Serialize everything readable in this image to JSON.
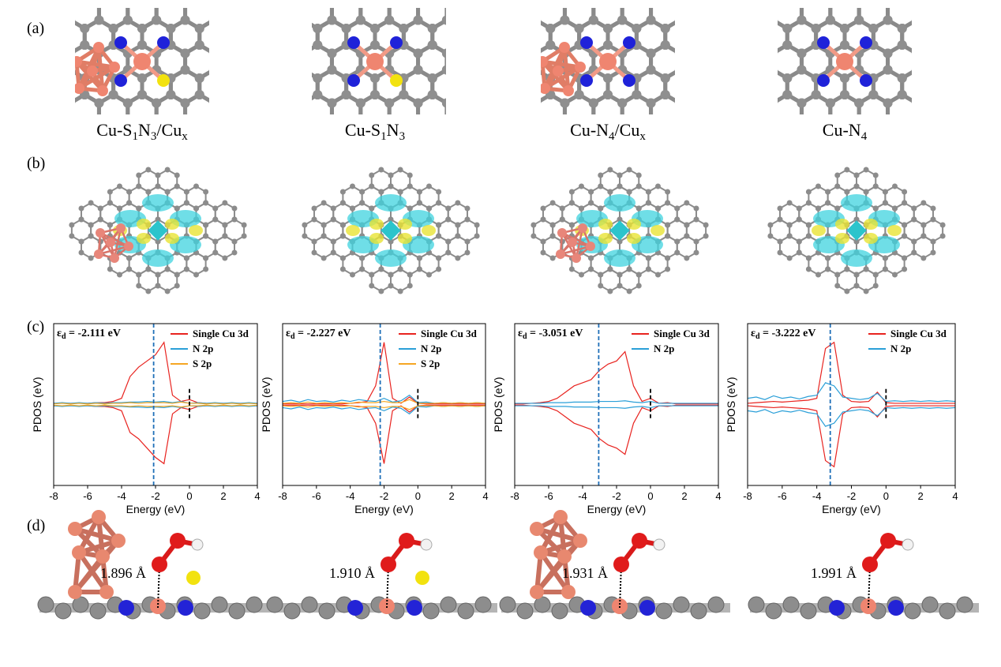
{
  "panels": [
    "(a)",
    "(b)",
    "(c)",
    "(d)"
  ],
  "structures": [
    {
      "label": [
        "Cu-S",
        "1",
        "N",
        "3",
        "/Cu",
        "x"
      ]
    },
    {
      "label": [
        "Cu-S",
        "1",
        "N",
        "3"
      ]
    },
    {
      "label": [
        "Cu-N",
        "4",
        "/Cu",
        "x"
      ]
    },
    {
      "label": [
        "Cu-N",
        "4"
      ]
    }
  ],
  "bond_lengths": [
    "1.896 Å",
    "1.910 Å",
    "1.931 Å",
    "1.991 Å"
  ],
  "chart_data": [
    {
      "type": "line",
      "xlabel": "Energy (eV)",
      "ylabel": "PDOS (eV)",
      "xlim": [
        -8,
        4
      ],
      "xticks": [
        -8,
        -6,
        -4,
        -2,
        0,
        2,
        4
      ],
      "ylim": [
        -1.3,
        1.3
      ],
      "annotation": {
        "symbol": "ε",
        "subscript": "d",
        "text": " = -2.111 eV",
        "value": -2.111
      },
      "fermi_level": 0,
      "x": [
        -8,
        -7.5,
        -7,
        -6.5,
        -6,
        -5.5,
        -5,
        -4.5,
        -4,
        -3.5,
        -3,
        -2.5,
        -2,
        -1.5,
        -1,
        -0.5,
        0,
        0.5,
        1,
        1.5,
        2,
        2.5,
        3,
        3.5,
        4
      ],
      "series": [
        {
          "name": "Single Cu 3d",
          "color": "#e8231f",
          "values": [
            0.02,
            0.02,
            0.02,
            0.02,
            0.02,
            0.03,
            0.03,
            0.05,
            0.1,
            0.45,
            0.6,
            0.7,
            0.8,
            1.0,
            0.15,
            0.05,
            0.08,
            0.03,
            0.02,
            0.02,
            0.02,
            0.02,
            0.02,
            0.02,
            0.02
          ],
          "values_down": [
            -0.02,
            -0.02,
            -0.02,
            -0.02,
            -0.02,
            -0.03,
            -0.03,
            -0.05,
            -0.1,
            -0.45,
            -0.55,
            -0.7,
            -0.85,
            -0.95,
            -0.15,
            -0.05,
            -0.08,
            -0.03,
            -0.02,
            -0.02,
            -0.02,
            -0.02,
            -0.02,
            -0.02,
            -0.02
          ]
        },
        {
          "name": "N 2p",
          "color": "#2a9fd8",
          "values": [
            0.02,
            0.03,
            0.02,
            0.03,
            0.02,
            0.03,
            0.02,
            0.03,
            0.03,
            0.04,
            0.04,
            0.05,
            0.04,
            0.05,
            0.03,
            0.05,
            0.02,
            0.03,
            0.02,
            0.03,
            0.02,
            0.03,
            0.02,
            0.03,
            0.02
          ],
          "values_down": [
            -0.02,
            -0.03,
            -0.02,
            -0.03,
            -0.02,
            -0.03,
            -0.02,
            -0.03,
            -0.03,
            -0.04,
            -0.04,
            -0.05,
            -0.04,
            -0.05,
            -0.03,
            -0.05,
            -0.02,
            -0.03,
            -0.02,
            -0.03,
            -0.02,
            -0.03,
            -0.02,
            -0.03,
            -0.02
          ]
        },
        {
          "name": "S 2p",
          "color": "#f5a623",
          "values": [
            0.01,
            0.02,
            0.01,
            0.02,
            0.01,
            0.02,
            0.01,
            0.02,
            0.02,
            0.03,
            0.02,
            0.03,
            0.03,
            0.03,
            0.02,
            0.04,
            0.02,
            0.02,
            0.01,
            0.02,
            0.01,
            0.02,
            0.01,
            0.02,
            0.01
          ],
          "values_down": [
            -0.01,
            -0.02,
            -0.01,
            -0.02,
            -0.01,
            -0.02,
            -0.01,
            -0.02,
            -0.02,
            -0.03,
            -0.02,
            -0.03,
            -0.03,
            -0.03,
            -0.02,
            -0.04,
            -0.02,
            -0.02,
            -0.01,
            -0.02,
            -0.01,
            -0.02,
            -0.01,
            -0.02,
            -0.01
          ]
        }
      ]
    },
    {
      "type": "line",
      "xlabel": "Energy (eV)",
      "ylabel": "PDOS (eV)",
      "xlim": [
        -8,
        4
      ],
      "xticks": [
        -8,
        -6,
        -4,
        -2,
        0,
        2,
        4
      ],
      "ylim": [
        -1.3,
        1.3
      ],
      "annotation": {
        "symbol": "ε",
        "subscript": "d",
        "text": " = -2.227 eV",
        "value": -2.227
      },
      "fermi_level": 0,
      "x": [
        -8,
        -7.5,
        -7,
        -6.5,
        -6,
        -5.5,
        -5,
        -4.5,
        -4,
        -3.5,
        -3,
        -2.5,
        -2,
        -1.5,
        -1,
        -0.5,
        0,
        0.5,
        1,
        1.5,
        2,
        2.5,
        3,
        3.5,
        4
      ],
      "series": [
        {
          "name": "Single Cu 3d",
          "color": "#e8231f",
          "values": [
            0.01,
            0.01,
            0.01,
            0.01,
            0.01,
            0.01,
            0.01,
            0.01,
            0.02,
            0.03,
            0.05,
            0.3,
            1.0,
            0.1,
            0.02,
            0.12,
            0.02,
            0.01,
            0.01,
            0.01,
            0.01,
            0.01,
            0.01,
            0.01,
            0.01
          ],
          "values_down": [
            -0.01,
            -0.01,
            -0.01,
            -0.01,
            -0.01,
            -0.01,
            -0.01,
            -0.01,
            -0.02,
            -0.03,
            -0.05,
            -0.3,
            -0.95,
            -0.1,
            -0.02,
            -0.12,
            -0.02,
            -0.01,
            -0.01,
            -0.01,
            -0.01,
            -0.01,
            -0.01,
            -0.01,
            -0.01
          ]
        },
        {
          "name": "N 2p",
          "color": "#2a9fd8",
          "values": [
            0.05,
            0.07,
            0.04,
            0.08,
            0.05,
            0.06,
            0.04,
            0.07,
            0.05,
            0.08,
            0.06,
            0.05,
            0.1,
            0.04,
            0.06,
            0.15,
            0.03,
            0.04,
            0.02,
            0.03,
            0.02,
            0.03,
            0.02,
            0.03,
            0.02
          ],
          "values_down": [
            -0.05,
            -0.07,
            -0.04,
            -0.08,
            -0.05,
            -0.06,
            -0.04,
            -0.07,
            -0.05,
            -0.08,
            -0.06,
            -0.05,
            -0.1,
            -0.04,
            -0.06,
            -0.15,
            -0.03,
            -0.04,
            -0.02,
            -0.03,
            -0.02,
            -0.03,
            -0.02,
            -0.03,
            -0.02
          ]
        },
        {
          "name": "S 2p",
          "color": "#f5a623",
          "values": [
            0.02,
            0.03,
            0.02,
            0.04,
            0.02,
            0.03,
            0.02,
            0.03,
            0.02,
            0.04,
            0.03,
            0.03,
            0.05,
            0.03,
            0.03,
            0.08,
            0.02,
            0.02,
            0.02,
            0.03,
            0.02,
            0.03,
            0.02,
            0.03,
            0.02
          ],
          "values_down": [
            -0.02,
            -0.03,
            -0.02,
            -0.04,
            -0.02,
            -0.03,
            -0.02,
            -0.03,
            -0.02,
            -0.04,
            -0.03,
            -0.03,
            -0.05,
            -0.03,
            -0.03,
            -0.08,
            -0.02,
            -0.02,
            -0.02,
            -0.03,
            -0.02,
            -0.03,
            -0.02,
            -0.03,
            -0.02
          ]
        }
      ]
    },
    {
      "type": "line",
      "xlabel": "Energy (eV)",
      "ylabel": "PDOS (eV)",
      "xlim": [
        -8,
        4
      ],
      "xticks": [
        -8,
        -6,
        -4,
        -2,
        0,
        2,
        4
      ],
      "ylim": [
        -1.3,
        1.3
      ],
      "annotation": {
        "symbol": "ε",
        "subscript": "d",
        "text": " = -3.051 eV",
        "value": -3.051
      },
      "fermi_level": 0,
      "x": [
        -8,
        -7.5,
        -7,
        -6.5,
        -6,
        -5.5,
        -5,
        -4.5,
        -4,
        -3.5,
        -3,
        -2.5,
        -2,
        -1.5,
        -1,
        -0.5,
        0,
        0.5,
        1,
        1.5,
        2,
        2.5,
        3,
        3.5,
        4
      ],
      "series": [
        {
          "name": "Single Cu 3d",
          "color": "#e8231f",
          "values": [
            0.01,
            0.01,
            0.02,
            0.03,
            0.05,
            0.1,
            0.2,
            0.3,
            0.35,
            0.4,
            0.55,
            0.65,
            0.7,
            0.85,
            0.3,
            0.05,
            0.1,
            0.02,
            0.03,
            0.01,
            0.01,
            0.01,
            0.01,
            0.01,
            0.01
          ],
          "values_down": [
            -0.01,
            -0.01,
            -0.02,
            -0.03,
            -0.05,
            -0.1,
            -0.2,
            -0.3,
            -0.35,
            -0.4,
            -0.55,
            -0.65,
            -0.7,
            -0.8,
            -0.3,
            -0.05,
            -0.1,
            -0.02,
            -0.03,
            -0.01,
            -0.01,
            -0.01,
            -0.01,
            -0.01,
            -0.01
          ]
        },
        {
          "name": "N 2p",
          "color": "#2a9fd8",
          "values": [
            0.02,
            0.02,
            0.02,
            0.02,
            0.03,
            0.03,
            0.03,
            0.04,
            0.04,
            0.04,
            0.05,
            0.05,
            0.05,
            0.06,
            0.04,
            0.03,
            0.05,
            0.02,
            0.02,
            0.02,
            0.02,
            0.02,
            0.02,
            0.02,
            0.02
          ],
          "values_down": [
            -0.02,
            -0.02,
            -0.02,
            -0.02,
            -0.03,
            -0.03,
            -0.03,
            -0.04,
            -0.04,
            -0.04,
            -0.05,
            -0.05,
            -0.05,
            -0.06,
            -0.04,
            -0.03,
            -0.05,
            -0.02,
            -0.02,
            -0.02,
            -0.02,
            -0.02,
            -0.02,
            -0.02,
            -0.02
          ]
        }
      ]
    },
    {
      "type": "line",
      "xlabel": "Energy (eV)",
      "ylabel": "PDOS (eV)",
      "xlim": [
        -8,
        4
      ],
      "xticks": [
        -8,
        -6,
        -4,
        -2,
        0,
        2,
        4
      ],
      "ylim": [
        -1.3,
        1.3
      ],
      "annotation": {
        "symbol": "ε",
        "subscript": "d",
        "text": " = -3.222 eV",
        "value": -3.222
      },
      "fermi_level": 0,
      "x": [
        -8,
        -7.5,
        -7,
        -6.5,
        -6,
        -5.5,
        -5,
        -4.5,
        -4,
        -3.5,
        -3,
        -2.5,
        -2,
        -1.5,
        -1,
        -0.5,
        0,
        0.5,
        1,
        1.5,
        2,
        2.5,
        3,
        3.5,
        4
      ],
      "series": [
        {
          "name": "Single Cu 3d",
          "color": "#e8231f",
          "values": [
            0.02,
            0.03,
            0.04,
            0.05,
            0.04,
            0.05,
            0.06,
            0.07,
            0.1,
            0.9,
            1.0,
            0.15,
            0.05,
            0.04,
            0.05,
            0.2,
            0.03,
            0.02,
            0.02,
            0.02,
            0.02,
            0.02,
            0.02,
            0.02,
            0.02
          ],
          "values_down": [
            -0.02,
            -0.03,
            -0.04,
            -0.05,
            -0.04,
            -0.05,
            -0.06,
            -0.07,
            -0.1,
            -0.9,
            -1.0,
            -0.15,
            -0.05,
            -0.04,
            -0.05,
            -0.2,
            -0.03,
            -0.02,
            -0.02,
            -0.02,
            -0.02,
            -0.02,
            -0.02,
            -0.02,
            -0.02
          ]
        },
        {
          "name": "N 2p",
          "color": "#2a9fd8",
          "values": [
            0.1,
            0.12,
            0.08,
            0.14,
            0.1,
            0.12,
            0.09,
            0.13,
            0.15,
            0.35,
            0.3,
            0.12,
            0.1,
            0.08,
            0.1,
            0.18,
            0.05,
            0.06,
            0.05,
            0.06,
            0.05,
            0.06,
            0.05,
            0.06,
            0.05
          ],
          "values_down": [
            -0.1,
            -0.12,
            -0.08,
            -0.14,
            -0.1,
            -0.12,
            -0.09,
            -0.13,
            -0.15,
            -0.35,
            -0.3,
            -0.12,
            -0.1,
            -0.08,
            -0.1,
            -0.18,
            -0.05,
            -0.06,
            -0.05,
            -0.06,
            -0.05,
            -0.06,
            -0.05,
            -0.06,
            -0.05
          ]
        }
      ]
    }
  ]
}
